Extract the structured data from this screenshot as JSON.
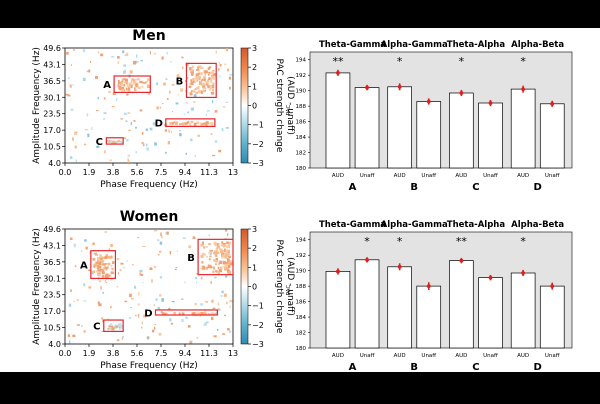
{
  "chart_data": [
    {
      "type": "heatmap",
      "panel": "men-heatmap",
      "title": "Men",
      "xlabel": "Phase Frequency (Hz)",
      "ylabel": "Amplitude Frequency (Hz)",
      "xlim": [
        0,
        13
      ],
      "ylim": [
        4,
        49.6
      ],
      "xticks": [
        "0.0",
        "1.9",
        "3.8",
        "5.6",
        "7.5",
        "9.4",
        "11.3",
        "13"
      ],
      "yticks": [
        "4.0",
        "10.5",
        "17.0",
        "23.5",
        "30.1",
        "36.5",
        "43.1",
        "49.6"
      ],
      "colorbar": {
        "label": "PAC strength change",
        "sublabel": "(AUD - unaff)",
        "ticks": [
          "3",
          "2",
          "1",
          "0",
          "−1",
          "−2",
          "−3"
        ],
        "range": [
          -3,
          3
        ]
      },
      "regions": [
        {
          "label": "A",
          "x": [
            3.8,
            6.6
          ],
          "y": [
            32.0,
            38.5
          ]
        },
        {
          "label": "B",
          "x": [
            9.4,
            11.7
          ],
          "y": [
            30.0,
            43.5
          ]
        },
        {
          "label": "C",
          "x": [
            3.2,
            4.5
          ],
          "y": [
            11.5,
            14.0
          ]
        },
        {
          "label": "D",
          "x": [
            7.8,
            11.6
          ],
          "y": [
            18.5,
            21.5
          ]
        }
      ]
    },
    {
      "type": "bar",
      "panel": "men-bars",
      "ylabel": "PAC",
      "ylim": [
        180,
        195
      ],
      "yticks": [
        "180",
        "182",
        "184",
        "186",
        "188",
        "190",
        "192",
        "194"
      ],
      "categories": [
        "AUD",
        "Unaff",
        "AUD",
        "Unaff",
        "AUD",
        "Unaff",
        "AUD",
        "Unaff"
      ],
      "values": [
        192.3,
        190.4,
        190.5,
        188.6,
        189.7,
        188.4,
        190.2,
        188.3
      ],
      "errors": [
        0.4,
        0.35,
        0.45,
        0.4,
        0.4,
        0.4,
        0.45,
        0.4
      ],
      "groups": [
        {
          "title": "Theta-Gamma",
          "letter": "A",
          "sig": "**"
        },
        {
          "title": "Alpha-Gamma",
          "letter": "B",
          "sig": "*"
        },
        {
          "title": "Theta-Alpha",
          "letter": "C",
          "sig": "*"
        },
        {
          "title": "Alpha-Beta",
          "letter": "D",
          "sig": "*"
        }
      ]
    },
    {
      "type": "heatmap",
      "panel": "women-heatmap",
      "title": "Women",
      "xlabel": "Phase Frequency (Hz)",
      "ylabel": "Amplitude Frequency (Hz)",
      "xlim": [
        0,
        13
      ],
      "ylim": [
        4,
        49.6
      ],
      "xticks": [
        "0.0",
        "1.9",
        "3.8",
        "5.6",
        "7.5",
        "9.4",
        "11.3",
        "13"
      ],
      "yticks": [
        "4.0",
        "10.5",
        "17.0",
        "23.5",
        "30.1",
        "36.5",
        "43.1",
        "49.6"
      ],
      "colorbar": {
        "label": "PAC strength change",
        "sublabel": "(AUD - unaff)",
        "ticks": [
          "3",
          "2",
          "1",
          "0",
          "−1",
          "−2",
          "−3"
        ],
        "range": [
          -3,
          3
        ]
      },
      "regions": [
        {
          "label": "A",
          "x": [
            2.0,
            3.9
          ],
          "y": [
            30.0,
            41.0
          ]
        },
        {
          "label": "B",
          "x": [
            10.3,
            13.0
          ],
          "y": [
            31.5,
            45.5
          ]
        },
        {
          "label": "C",
          "x": [
            3.0,
            4.5
          ],
          "y": [
            9.0,
            13.5
          ]
        },
        {
          "label": "D",
          "x": [
            7.0,
            11.8
          ],
          "y": [
            15.5,
            17.5
          ]
        }
      ]
    },
    {
      "type": "bar",
      "panel": "women-bars",
      "ylabel": "PAC",
      "ylim": [
        180,
        195
      ],
      "yticks": [
        "180",
        "182",
        "184",
        "186",
        "188",
        "190",
        "192",
        "194"
      ],
      "categories": [
        "AUD",
        "Unaff",
        "AUD",
        "Unaff",
        "AUD",
        "Unaff",
        "AUD",
        "Unaff"
      ],
      "values": [
        189.9,
        191.4,
        190.5,
        188.0,
        191.3,
        189.1,
        189.7,
        188.0
      ],
      "errors": [
        0.4,
        0.35,
        0.45,
        0.5,
        0.35,
        0.35,
        0.4,
        0.45
      ],
      "groups": [
        {
          "title": "Theta-Gamma",
          "letter": "A",
          "sig": "*",
          "sig_on": 1
        },
        {
          "title": "Alpha-Gamma",
          "letter": "B",
          "sig": "*",
          "sig_on": 0
        },
        {
          "title": "Theta-Alpha",
          "letter": "C",
          "sig": "**",
          "sig_on": 0
        },
        {
          "title": "Alpha-Beta",
          "letter": "D",
          "sig": "*",
          "sig_on": 0
        }
      ]
    }
  ],
  "colors": {
    "positive": "#f4a46a",
    "negative": "#9ccfe4",
    "region_box": "#e8262b",
    "bar_bg": "#e3e3e3",
    "error": "#e21d1d"
  }
}
